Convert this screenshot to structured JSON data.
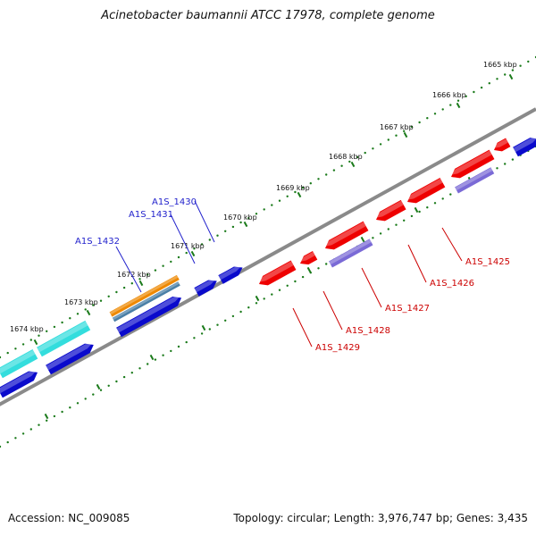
{
  "title": "Acinetobacter baumannii ATCC 17978, complete genome",
  "footer": {
    "accession": "Accession: NC_009085",
    "summary": "Topology: circular; Length: 3,976,747 bp; Genes: 3,435"
  },
  "ticks": [
    "1665 kbp",
    "1666 kbp",
    "1667 kbp",
    "1668 kbp",
    "1669 kbp",
    "1670 kbp",
    "1671 kbp",
    "1672 kbp",
    "1673 kbp",
    "1674 kbp"
  ],
  "gene_labels": {
    "forward": [
      "A1S_1430",
      "A1S_1431",
      "A1S_1432"
    ],
    "reverse": [
      "A1S_1425",
      "A1S_1426",
      "A1S_1427",
      "A1S_1428",
      "A1S_1429"
    ]
  },
  "colors": {
    "backbone": "#7a7a7a",
    "forward_gene": "#0a0acc",
    "reverse_gene": "#ee0000",
    "cds_cyan": "#33dddd",
    "cds_orange": "#ee8800",
    "cds_slate": "#4a7fa6",
    "cds_lavender": "#7a6ad6",
    "tick": "#1a7a1a",
    "forward_label": "#2222cc",
    "reverse_label": "#cc0000"
  }
}
